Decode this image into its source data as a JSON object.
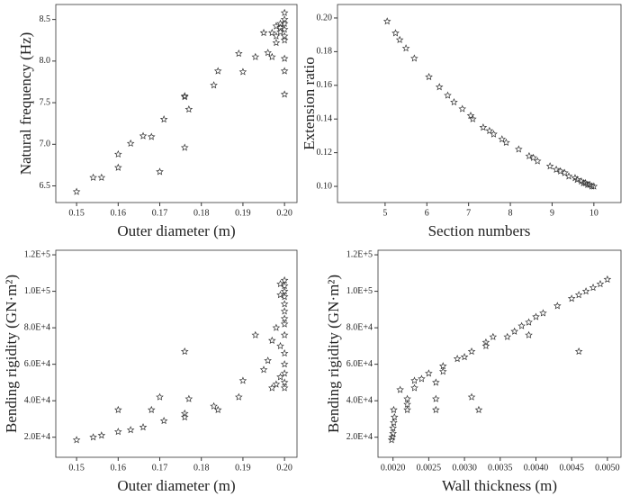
{
  "chart_data": [
    {
      "type": "scatter",
      "xlabel": "Outer diameter (m)",
      "ylabel": "Natural frequency (Hz)",
      "x": [
        0.15,
        0.154,
        0.156,
        0.16,
        0.16,
        0.163,
        0.166,
        0.168,
        0.17,
        0.171,
        0.176,
        0.176,
        0.177,
        0.176,
        0.183,
        0.184,
        0.189,
        0.19,
        0.193,
        0.195,
        0.196,
        0.197,
        0.197,
        0.198,
        0.198,
        0.199,
        0.2,
        0.2,
        0.2,
        0.2,
        0.2,
        0.2,
        0.2,
        0.2,
        0.2,
        0.199,
        0.199,
        0.198
      ],
      "values": [
        6.43,
        6.6,
        6.6,
        6.72,
        6.88,
        7.01,
        7.1,
        7.09,
        6.67,
        7.3,
        6.96,
        7.57,
        7.42,
        7.58,
        7.71,
        7.88,
        8.09,
        7.87,
        8.05,
        8.34,
        8.1,
        8.34,
        8.05,
        8.22,
        8.3,
        8.4,
        8.58,
        8.5,
        8.45,
        8.38,
        8.3,
        8.25,
        8.03,
        7.88,
        7.6,
        8.35,
        8.45,
        8.42
      ],
      "xlim": [
        0.145,
        0.203
      ],
      "ylim": [
        6.3,
        8.68
      ],
      "xticks": [
        0.15,
        0.16,
        0.17,
        0.18,
        0.19,
        {
          "value": 0.2,
          "label": "0.20"
        }
      ],
      "yticks": [
        6.5,
        {
          "value": 7,
          "label": "7.0"
        },
        7.5,
        {
          "value": 8,
          "label": "8.0"
        },
        8.5
      ]
    },
    {
      "type": "scatter",
      "xlabel": "Section numbers",
      "ylabel": "Extension ratio",
      "x": [
        5.05,
        5.25,
        5.35,
        5.5,
        5.7,
        6.05,
        6.3,
        6.5,
        6.65,
        6.85,
        7.05,
        7.1,
        7.35,
        7.5,
        7.6,
        7.8,
        7.9,
        8.2,
        8.45,
        8.55,
        8.65,
        8.95,
        9.1,
        9.2,
        9.3,
        9.4,
        9.55,
        9.6,
        9.7,
        9.75,
        9.8,
        9.85,
        9.9,
        9.95,
        10
      ],
      "values": [
        0.198,
        0.191,
        0.187,
        0.182,
        0.176,
        0.165,
        0.159,
        0.154,
        0.15,
        0.146,
        0.142,
        0.14,
        0.135,
        0.133,
        0.131,
        0.128,
        0.126,
        0.122,
        0.118,
        0.117,
        0.115,
        0.112,
        0.11,
        0.109,
        0.108,
        0.106,
        0.105,
        0.104,
        0.103,
        0.102,
        0.102,
        0.101,
        0.101,
        0.1,
        0.1
      ],
      "xlim": [
        3.86,
        10.65
      ],
      "ylim": [
        0.0904,
        0.208
      ],
      "xticks": [
        5,
        6,
        7,
        8,
        9,
        10
      ],
      "yticks": [
        {
          "value": 0.1,
          "label": "0.10"
        },
        0.12,
        0.14,
        0.16,
        0.18,
        {
          "value": 0.2,
          "label": "0.20"
        }
      ]
    },
    {
      "type": "scatter",
      "xlabel": "Outer diameter (m)",
      "ylabel": "Bending rigidity (GN·m²)",
      "x": [
        0.15,
        0.154,
        0.156,
        0.16,
        0.16,
        0.163,
        0.166,
        0.168,
        0.17,
        0.171,
        0.176,
        0.176,
        0.176,
        0.177,
        0.183,
        0.184,
        0.189,
        0.19,
        0.193,
        0.195,
        0.196,
        0.197,
        0.197,
        0.198,
        0.198,
        0.199,
        0.199,
        0.2,
        0.2,
        0.2,
        0.2,
        0.2,
        0.2,
        0.2,
        0.2,
        0.2,
        0.2,
        0.2,
        0.2,
        0.2,
        0.2,
        0.199,
        0.199
      ],
      "values": [
        18500,
        20000,
        21000,
        23000,
        35000,
        24000,
        25500,
        35000,
        42000,
        29000,
        31000,
        33000,
        67000,
        41000,
        37000,
        35000,
        42000,
        51000,
        76000,
        57000,
        62000,
        47000,
        73000,
        49000,
        80000,
        53000,
        70000,
        106000,
        103000,
        100000,
        97000,
        93000,
        89000,
        85000,
        82000,
        76000,
        66000,
        60000,
        55000,
        50000,
        47000,
        104000,
        98000
      ],
      "xlim": [
        0.145,
        0.203
      ],
      "ylim": [
        9000,
        122500
      ],
      "xticks": [
        0.15,
        0.16,
        0.17,
        0.18,
        0.19,
        {
          "value": 0.2,
          "label": "0.20"
        }
      ],
      "yticks": [
        {
          "value": 20000,
          "label": "2.0E+4"
        },
        {
          "value": 40000,
          "label": "4.0E+4"
        },
        {
          "value": 60000,
          "label": "6.0E+4"
        },
        {
          "value": 80000,
          "label": "8.0E+4"
        },
        {
          "value": 100000,
          "label": "1.0E+5"
        },
        {
          "value": 120000,
          "label": "1.2E+5"
        }
      ]
    },
    {
      "type": "scatter",
      "xlabel": "Wall thickness (m)",
      "ylabel": "Bending rigidity (GN·m²)",
      "x": [
        0.00198,
        0.00199,
        0.002,
        0.002,
        0.00201,
        0.00202,
        0.00201,
        0.0021,
        0.0022,
        0.0022,
        0.0022,
        0.0023,
        0.0023,
        0.0024,
        0.0025,
        0.0026,
        0.0026,
        0.0026,
        0.0027,
        0.0027,
        0.0029,
        0.003,
        0.0031,
        0.0031,
        0.0032,
        0.0033,
        0.0033,
        0.0034,
        0.0036,
        0.0037,
        0.0038,
        0.0039,
        0.0039,
        0.004,
        0.0041,
        0.0043,
        0.0045,
        0.0046,
        0.0046,
        0.0047,
        0.0048,
        0.0049,
        0.005
      ],
      "values": [
        18500,
        20000,
        22000,
        25000,
        28000,
        31000,
        35000,
        46000,
        35000,
        38000,
        41000,
        47000,
        51000,
        52000,
        55000,
        50000,
        41000,
        35000,
        56000,
        59000,
        63000,
        64000,
        67000,
        42000,
        35000,
        70000,
        72000,
        75000,
        75000,
        78000,
        81000,
        83000,
        76000,
        86000,
        88000,
        92000,
        96000,
        98000,
        67000,
        100000,
        102000,
        104000,
        106500
      ],
      "xlim": [
        0.00179,
        0.00519
      ],
      "ylim": [
        9000,
        122500
      ],
      "xticks": [
        {
          "value": 0.002,
          "label": "0.0020"
        },
        0.0025,
        {
          "value": 0.003,
          "label": "0.0030"
        },
        0.0035,
        {
          "value": 0.004,
          "label": "0.0040"
        },
        0.0045,
        {
          "value": 0.005,
          "label": "0.0050"
        }
      ],
      "yticks": [
        {
          "value": 20000,
          "label": "2.0E+4"
        },
        {
          "value": 40000,
          "label": "4.0E+4"
        },
        {
          "value": 60000,
          "label": "6.0E+4"
        },
        {
          "value": 80000,
          "label": "8.0E+4"
        },
        {
          "value": 100000,
          "label": "1.0E+5"
        },
        {
          "value": 120000,
          "label": "1.2E+5"
        }
      ]
    }
  ]
}
